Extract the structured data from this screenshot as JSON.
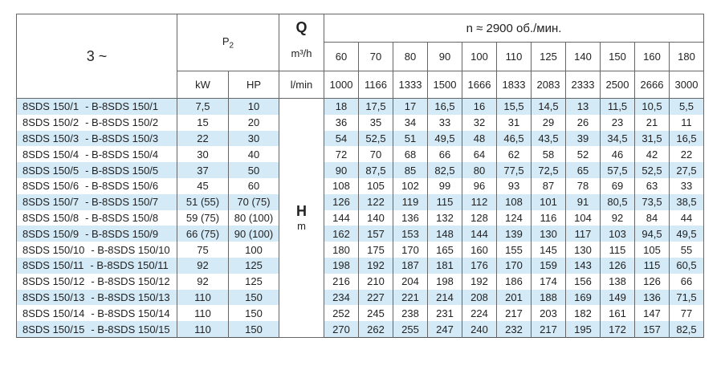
{
  "header": {
    "phase": "3 ~",
    "power": "P",
    "power_sub": "2",
    "kw": "kW",
    "hp": "HP",
    "q": "Q",
    "q_unit_m3h": "m³/h",
    "q_unit_lmin": "l/min",
    "speed": "n ≈ 2900 об./мин.",
    "h": "H",
    "h_unit": "m"
  },
  "flow_m3h": [
    "60",
    "70",
    "80",
    "90",
    "100",
    "110",
    "125",
    "140",
    "150",
    "160",
    "180"
  ],
  "flow_lmin": [
    "1000",
    "1166",
    "1333",
    "1500",
    "1666",
    "1833",
    "2083",
    "2333",
    "2500",
    "2666",
    "3000"
  ],
  "rows": [
    {
      "a": "8SDS 150/1",
      "b": "- B-8SDS 150/1",
      "kw": "7,5",
      "hp": "10",
      "h": [
        "18",
        "17,5",
        "17",
        "16,5",
        "16",
        "15,5",
        "14,5",
        "13",
        "11,5",
        "10,5",
        "5,5"
      ]
    },
    {
      "a": "8SDS 150/2",
      "b": "- B-8SDS 150/2",
      "kw": "15",
      "hp": "20",
      "h": [
        "36",
        "35",
        "34",
        "33",
        "32",
        "31",
        "29",
        "26",
        "23",
        "21",
        "11"
      ]
    },
    {
      "a": "8SDS 150/3",
      "b": "- B-8SDS 150/3",
      "kw": "22",
      "hp": "30",
      "h": [
        "54",
        "52,5",
        "51",
        "49,5",
        "48",
        "46,5",
        "43,5",
        "39",
        "34,5",
        "31,5",
        "16,5"
      ]
    },
    {
      "a": "8SDS 150/4",
      "b": "- B-8SDS 150/4",
      "kw": "30",
      "hp": "40",
      "h": [
        "72",
        "70",
        "68",
        "66",
        "64",
        "62",
        "58",
        "52",
        "46",
        "42",
        "22"
      ]
    },
    {
      "a": "8SDS 150/5",
      "b": "- B-8SDS 150/5",
      "kw": "37",
      "hp": "50",
      "h": [
        "90",
        "87,5",
        "85",
        "82,5",
        "80",
        "77,5",
        "72,5",
        "65",
        "57,5",
        "52,5",
        "27,5"
      ]
    },
    {
      "a": "8SDS 150/6",
      "b": "- B-8SDS 150/6",
      "kw": "45",
      "hp": "60",
      "h": [
        "108",
        "105",
        "102",
        "99",
        "96",
        "93",
        "87",
        "78",
        "69",
        "63",
        "33"
      ]
    },
    {
      "a": "8SDS 150/7",
      "b": "- B-8SDS 150/7",
      "kw": "51 (55)",
      "hp": "70 (75)",
      "h": [
        "126",
        "122",
        "119",
        "115",
        "112",
        "108",
        "101",
        "91",
        "80,5",
        "73,5",
        "38,5"
      ]
    },
    {
      "a": "8SDS 150/8",
      "b": "- B-8SDS 150/8",
      "kw": "59 (75)",
      "hp": "80 (100)",
      "h": [
        "144",
        "140",
        "136",
        "132",
        "128",
        "124",
        "116",
        "104",
        "92",
        "84",
        "44"
      ]
    },
    {
      "a": "8SDS 150/9",
      "b": "- B-8SDS 150/9",
      "kw": "66 (75)",
      "hp": "90 (100)",
      "h": [
        "162",
        "157",
        "153",
        "148",
        "144",
        "139",
        "130",
        "117",
        "103",
        "94,5",
        "49,5"
      ]
    },
    {
      "a": "8SDS 150/10",
      "b": "- B-8SDS 150/10",
      "kw": "75",
      "hp": "100",
      "h": [
        "180",
        "175",
        "170",
        "165",
        "160",
        "155",
        "145",
        "130",
        "115",
        "105",
        "55"
      ]
    },
    {
      "a": "8SDS 150/11",
      "b": "- B-8SDS 150/11",
      "kw": "92",
      "hp": "125",
      "h": [
        "198",
        "192",
        "187",
        "181",
        "176",
        "170",
        "159",
        "143",
        "126",
        "115",
        "60,5"
      ]
    },
    {
      "a": "8SDS 150/12",
      "b": "- B-8SDS 150/12",
      "kw": "92",
      "hp": "125",
      "h": [
        "216",
        "210",
        "204",
        "198",
        "192",
        "186",
        "174",
        "156",
        "138",
        "126",
        "66"
      ]
    },
    {
      "a": "8SDS 150/13",
      "b": "- B-8SDS 150/13",
      "kw": "110",
      "hp": "150",
      "h": [
        "234",
        "227",
        "221",
        "214",
        "208",
        "201",
        "188",
        "169",
        "149",
        "136",
        "71,5"
      ]
    },
    {
      "a": "8SDS 150/14",
      "b": "- B-8SDS 150/14",
      "kw": "110",
      "hp": "150",
      "h": [
        "252",
        "245",
        "238",
        "231",
        "224",
        "217",
        "203",
        "182",
        "161",
        "147",
        "77"
      ]
    },
    {
      "a": "8SDS 150/15",
      "b": "- B-8SDS 150/15",
      "kw": "110",
      "hp": "150",
      "h": [
        "270",
        "262",
        "255",
        "247",
        "240",
        "232",
        "217",
        "195",
        "172",
        "157",
        "82,5"
      ]
    }
  ],
  "colors": {
    "stripe": "#d4eaf7",
    "border": "#555555"
  }
}
